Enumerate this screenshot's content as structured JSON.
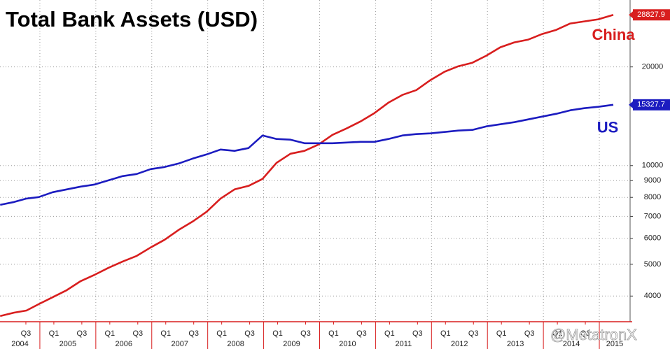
{
  "chart_data": {
    "type": "line",
    "title": "Total Bank Assets (USD)",
    "watermark": "@MetatronX",
    "log_scale": true,
    "grid": true,
    "x": [
      2004.29,
      2004.54,
      2004.76,
      2004.98,
      2005.23,
      2005.48,
      2005.73,
      2005.98,
      2006.23,
      2006.48,
      2006.73,
      2006.98,
      2007.23,
      2007.48,
      2007.73,
      2007.98,
      2008.23,
      2008.48,
      2008.73,
      2008.98,
      2009.23,
      2009.48,
      2009.73,
      2009.98,
      2010.23,
      2010.48,
      2010.73,
      2010.98,
      2011.23,
      2011.48,
      2011.73,
      2011.98,
      2012.23,
      2012.48,
      2012.73,
      2012.98,
      2013.23,
      2013.48,
      2013.73,
      2013.98,
      2014.23,
      2014.48,
      2014.73,
      2014.98,
      2015.25
    ],
    "series": [
      {
        "name": "China",
        "color": "#d81e1e",
        "values": [
          3475,
          3560,
          3614,
          3778,
          3969,
          4169,
          4444,
          4645,
          4880,
          5099,
          5304,
          5627,
          5939,
          6362,
          6749,
          7230,
          7934,
          8461,
          8671,
          9109,
          10199,
          10870,
          11090,
          11590,
          12410,
          12980,
          13630,
          14460,
          15560,
          16430,
          17000,
          18220,
          19320,
          20100,
          20600,
          21640,
          22960,
          23760,
          24230,
          25200,
          25950,
          27130,
          27530,
          27940,
          28827.9
        ]
      },
      {
        "name": "US",
        "color": "#1c1cc0",
        "values": [
          7592,
          7744,
          7934,
          8014,
          8295,
          8461,
          8628,
          8757,
          9020,
          9289,
          9427,
          9757,
          9902,
          10148,
          10504,
          10818,
          11197,
          11090,
          11308,
          12354,
          12055,
          11995,
          11703,
          11703,
          11703,
          11761,
          11819,
          11819,
          12055,
          12354,
          12478,
          12539,
          12663,
          12787,
          12850,
          13171,
          13366,
          13565,
          13833,
          14107,
          14388,
          14747,
          14966,
          15112,
          15327.7
        ]
      }
    ],
    "xlim": [
      2004.2875,
      2015.55
    ],
    "xticks": [
      {
        "value": 2004.75,
        "label": "Q3"
      },
      {
        "value": 2005.25,
        "label": "Q1"
      },
      {
        "value": 2005.75,
        "label": "Q3"
      },
      {
        "value": 2006.25,
        "label": "Q1"
      },
      {
        "value": 2006.75,
        "label": "Q3"
      },
      {
        "value": 2007.25,
        "label": "Q1"
      },
      {
        "value": 2007.75,
        "label": "Q3"
      },
      {
        "value": 2008.25,
        "label": "Q1"
      },
      {
        "value": 2008.75,
        "label": "Q3"
      },
      {
        "value": 2009.25,
        "label": "Q1"
      },
      {
        "value": 2009.75,
        "label": "Q3"
      },
      {
        "value": 2010.25,
        "label": "Q1"
      },
      {
        "value": 2010.75,
        "label": "Q3"
      },
      {
        "value": 2011.25,
        "label": "Q1"
      },
      {
        "value": 2011.75,
        "label": "Q3"
      },
      {
        "value": 2012.25,
        "label": "Q1"
      },
      {
        "value": 2012.75,
        "label": "Q3"
      },
      {
        "value": 2013.25,
        "label": "Q1"
      },
      {
        "value": 2013.75,
        "label": "Q3"
      },
      {
        "value": 2014.25,
        "label": "Q1"
      },
      {
        "value": 2014.75,
        "label": "Q3"
      }
    ],
    "year_ticks": [
      2004,
      2005,
      2006,
      2007,
      2008,
      2009,
      2010,
      2011,
      2012,
      2013,
      2014,
      2015
    ],
    "ylim": [
      3340,
      32000
    ],
    "yticks": [
      4000,
      5000,
      6000,
      7000,
      8000,
      9000,
      10000,
      20000
    ]
  }
}
